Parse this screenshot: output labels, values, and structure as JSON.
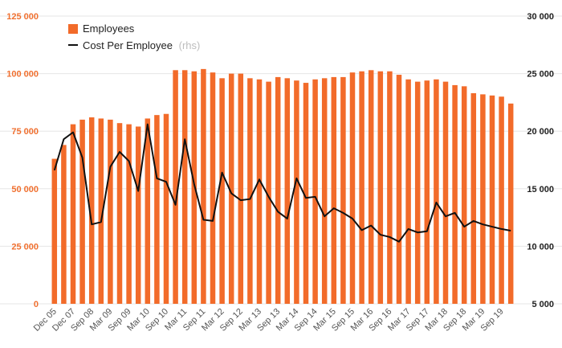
{
  "chart_data": {
    "type": "bar",
    "legend": {
      "placement": "top-left",
      "bar_label": "Employees",
      "line_label": "Cost Per Employee",
      "line_note": "(rhs)"
    },
    "left_axis": {
      "min": 0,
      "max": 125000,
      "ticks": [
        "0",
        "25 000",
        "50 000",
        "75 000",
        "100 000",
        "125 000"
      ]
    },
    "right_axis": {
      "min": 5000,
      "max": 30000,
      "ticks": [
        "5 000",
        "10 000",
        "15 000",
        "20 000",
        "25 000",
        "30 000"
      ]
    },
    "grid": true,
    "x_tick_labels": [
      "Dec 05",
      "Dec 07",
      "Sep 08",
      "Mar 09",
      "Sep 09",
      "Mar 10",
      "Sep 10",
      "Mar 11",
      "Sep 11",
      "Mar 12",
      "Sep 12",
      "Mar 13",
      "Sep 13",
      "Mar 14",
      "Sep 14",
      "Mar 15",
      "Sep 15",
      "Mar 16",
      "Sep 16",
      "Mar 17",
      "Sep 17",
      "Mar 18",
      "Sep 18",
      "Mar 19",
      "Sep 19"
    ],
    "series": [
      {
        "name": "Employees",
        "type": "bar",
        "axis": "left",
        "color": "#f26b2a",
        "values": [
          63000,
          69000,
          78000,
          80000,
          81000,
          80500,
          80000,
          78500,
          78000,
          77000,
          80500,
          82000,
          82500,
          101500,
          101500,
          101000,
          102000,
          100500,
          98000,
          100000,
          100000,
          98000,
          97500,
          96500,
          98500,
          98000,
          97000,
          96000,
          97500,
          98000,
          98500,
          98500,
          100500,
          101000,
          101500,
          101000,
          101000,
          99500,
          97500,
          96500,
          97000,
          97500,
          96500,
          95000,
          94500,
          91500,
          91000,
          90500,
          90000,
          87000
        ]
      },
      {
        "name": "Cost Per Employee",
        "type": "line",
        "axis": "right",
        "color": "#111111",
        "values": [
          16600,
          19300,
          19900,
          17700,
          11900,
          12100,
          16900,
          18200,
          17400,
          14800,
          20600,
          15900,
          15600,
          13600,
          19300,
          15400,
          12300,
          12200,
          16400,
          14600,
          14000,
          14100,
          15800,
          14300,
          13000,
          12400,
          15900,
          14200,
          14300,
          12600,
          13300,
          12900,
          12400,
          11400,
          11800,
          11000,
          10800,
          10400,
          11500,
          11200,
          11300,
          13800,
          12600,
          12900,
          11700,
          12200,
          11900,
          11700,
          11500,
          11350
        ]
      }
    ]
  }
}
